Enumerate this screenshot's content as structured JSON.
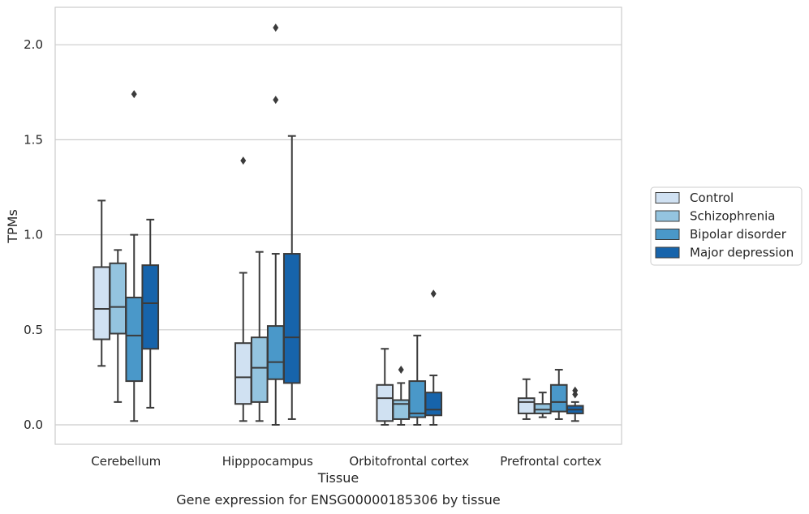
{
  "chart_data": {
    "type": "boxplot",
    "xlabel": "Tissue",
    "ylabel": "TPMs",
    "caption": "Gene expression for ENSG00000185306 by tissue",
    "ylim": [
      -0.1,
      2.2
    ],
    "yticks": [
      "0.0",
      "0.5",
      "1.0",
      "1.5",
      "2.0"
    ],
    "grid": "horizontal",
    "legend_position": "right",
    "categories": [
      "Cerebellum",
      "Hipppocampus",
      "Orbitofrontal cortex",
      "Prefrontal cortex"
    ],
    "series": [
      {
        "name": "Control",
        "color": "#d0e1f2",
        "boxes": [
          {
            "min": 0.31,
            "q1": 0.45,
            "median": 0.61,
            "q3": 0.83,
            "max": 1.18,
            "outliers": []
          },
          {
            "min": 0.02,
            "q1": 0.11,
            "median": 0.25,
            "q3": 0.43,
            "max": 0.8,
            "outliers": [
              1.39
            ]
          },
          {
            "min": 0.0,
            "q1": 0.02,
            "median": 0.14,
            "q3": 0.21,
            "max": 0.4,
            "outliers": []
          },
          {
            "min": 0.03,
            "q1": 0.06,
            "median": 0.12,
            "q3": 0.14,
            "max": 0.24,
            "outliers": []
          }
        ]
      },
      {
        "name": "Schizophrenia",
        "color": "#94c4df",
        "boxes": [
          {
            "min": 0.12,
            "q1": 0.48,
            "median": 0.62,
            "q3": 0.85,
            "max": 0.92,
            "outliers": []
          },
          {
            "min": 0.02,
            "q1": 0.12,
            "median": 0.3,
            "q3": 0.46,
            "max": 0.91,
            "outliers": []
          },
          {
            "min": 0.0,
            "q1": 0.03,
            "median": 0.11,
            "q3": 0.13,
            "max": 0.22,
            "outliers": [
              0.29
            ]
          },
          {
            "min": 0.04,
            "q1": 0.06,
            "median": 0.08,
            "q3": 0.11,
            "max": 0.17,
            "outliers": []
          }
        ]
      },
      {
        "name": "Bipolar disorder",
        "color": "#4a98c9",
        "boxes": [
          {
            "min": 0.02,
            "q1": 0.23,
            "median": 0.47,
            "q3": 0.67,
            "max": 1.0,
            "outliers": [
              1.74
            ]
          },
          {
            "min": 0.0,
            "q1": 0.24,
            "median": 0.33,
            "q3": 0.52,
            "max": 0.9,
            "outliers": [
              1.71,
              2.09
            ]
          },
          {
            "min": 0.0,
            "q1": 0.04,
            "median": 0.06,
            "q3": 0.23,
            "max": 0.47,
            "outliers": []
          },
          {
            "min": 0.03,
            "q1": 0.07,
            "median": 0.12,
            "q3": 0.21,
            "max": 0.29,
            "outliers": []
          }
        ]
      },
      {
        "name": "Major depression",
        "color": "#1764ab",
        "boxes": [
          {
            "min": 0.09,
            "q1": 0.4,
            "median": 0.64,
            "q3": 0.84,
            "max": 1.08,
            "outliers": []
          },
          {
            "min": 0.03,
            "q1": 0.22,
            "median": 0.46,
            "q3": 0.9,
            "max": 1.52,
            "outliers": []
          },
          {
            "min": 0.0,
            "q1": 0.05,
            "median": 0.08,
            "q3": 0.17,
            "max": 0.26,
            "outliers": [
              0.69
            ]
          },
          {
            "min": 0.02,
            "q1": 0.06,
            "median": 0.08,
            "q3": 0.1,
            "max": 0.12,
            "outliers": [
              0.16,
              0.18
            ]
          }
        ]
      }
    ]
  }
}
